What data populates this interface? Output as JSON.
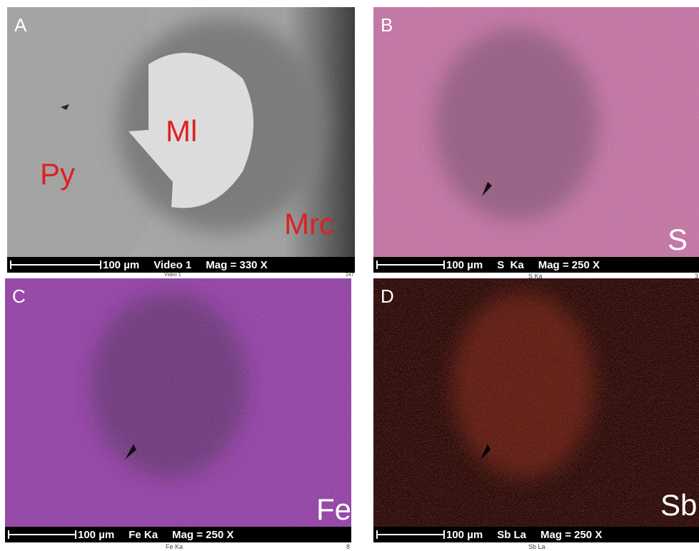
{
  "panels": [
    {
      "letter": "A",
      "labels": [
        "Py",
        "Ml",
        "Mrc"
      ],
      "scale": "100 µm",
      "signal": "Video 1",
      "mag": "Mag = 330 X",
      "caption": "Video 1",
      "number": 247
    },
    {
      "letter": "B",
      "labels": [
        "S"
      ],
      "scale": "100 µm",
      "signal": "S  Ka",
      "mag": "Mag = 250 X",
      "caption": "S Ka",
      "number": 3
    },
    {
      "letter": "C",
      "labels": [
        "Fe"
      ],
      "scale": "100 µm",
      "signal": "Fe Ka",
      "mag": "Mag = 250 X",
      "caption": "Fe Ka",
      "number": 8
    },
    {
      "letter": "D",
      "labels": [
        "Sb"
      ],
      "scale": "100 µm",
      "signal": "Sb La",
      "mag": "Mag = 250 X",
      "caption": "Sb La"
    }
  ]
}
